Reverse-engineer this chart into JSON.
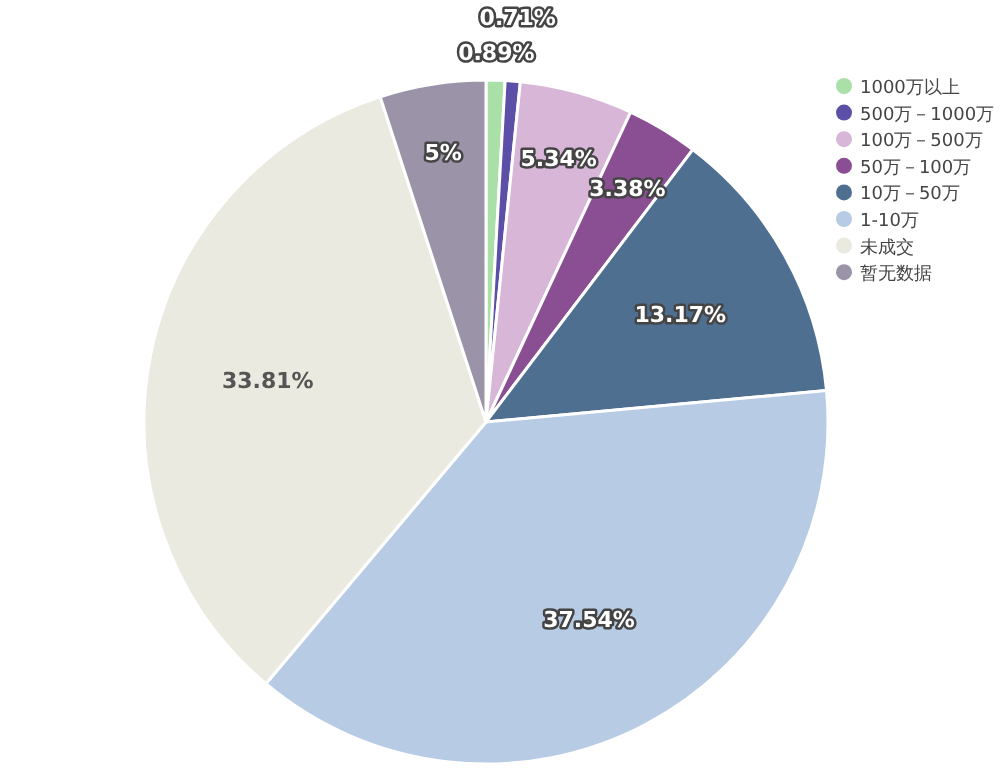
{
  "chart_data": {
    "type": "pie",
    "categories": [
      "1000万以上",
      "500万－1000万",
      "100万－500万",
      "50万－100万",
      "10万－50万",
      "1-10万",
      "未成交",
      "暂无数据"
    ],
    "values": [
      0.89,
      0.71,
      5.34,
      3.38,
      13.17,
      37.54,
      33.81,
      5
    ],
    "value_labels": [
      "0.89%",
      "0.71%",
      "5.34%",
      "3.38%",
      "13.17%",
      "37.54%",
      "33.81%",
      "5%"
    ],
    "colors": [
      "#a8e0a8",
      "#5b4fa8",
      "#d8b6d8",
      "#8a4f92",
      "#4f6f91",
      "#b7cbe4",
      "#eaeae0",
      "#9b93a7"
    ],
    "legend": "top right"
  }
}
